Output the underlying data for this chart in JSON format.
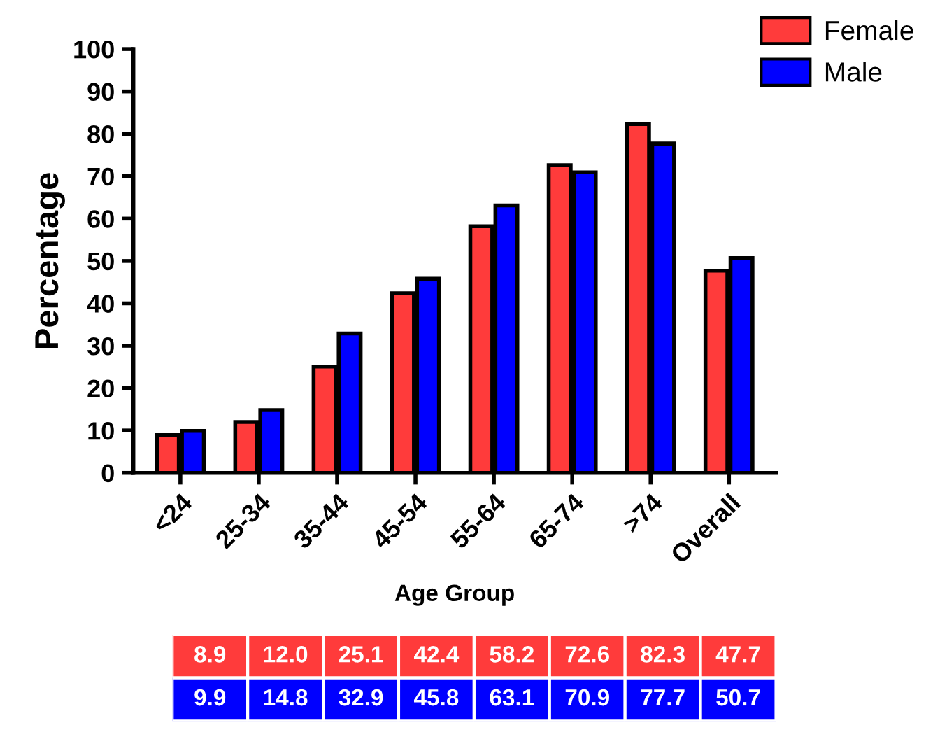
{
  "chart_data": {
    "type": "bar",
    "xlabel": "Age Group",
    "ylabel": "Percentage",
    "categories": [
      "<24",
      "25-34",
      "35-44",
      "45-54",
      "55-64",
      "65-74",
      ">74",
      "Overall"
    ],
    "series": [
      {
        "name": "Female",
        "color": "#ff3b3b",
        "values": [
          8.9,
          12.0,
          25.1,
          42.4,
          58.2,
          72.6,
          82.3,
          47.7
        ],
        "value_labels": [
          "8.9",
          "12.0",
          "25.1",
          "42.4",
          "58.2",
          "72.6",
          "82.3",
          "47.7"
        ]
      },
      {
        "name": "Male",
        "color": "#0000ff",
        "values": [
          9.9,
          14.8,
          32.9,
          45.8,
          63.1,
          70.9,
          77.7,
          50.7
        ],
        "value_labels": [
          "9.9",
          "14.8",
          "32.9",
          "45.8",
          "63.1",
          "70.9",
          "77.7",
          "50.7"
        ]
      }
    ],
    "ylim": [
      0,
      100
    ],
    "yticks": [
      0,
      10,
      20,
      30,
      40,
      50,
      60,
      70,
      80,
      90,
      100
    ],
    "grid": false,
    "legend": "top right"
  }
}
